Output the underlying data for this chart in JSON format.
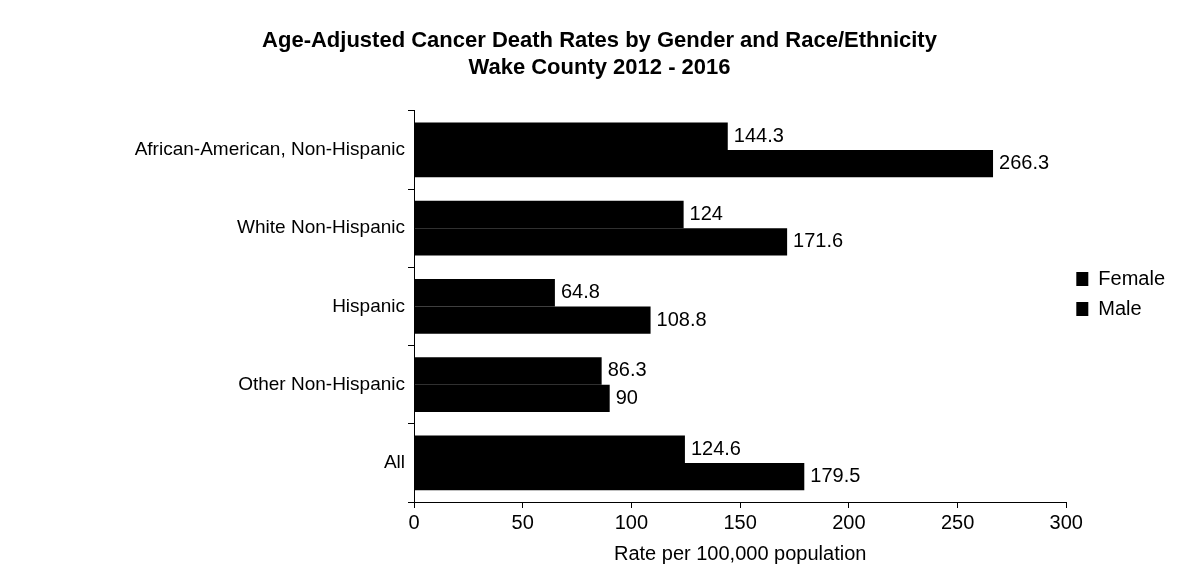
{
  "chart_data": {
    "type": "bar",
    "orientation": "horizontal",
    "title": "Age-Adjusted Cancer Death Rates by Gender and Race/Ethnicity",
    "subtitle": "Wake County 2012 - 2016",
    "xlabel": "Rate per 100,000 population",
    "categories": [
      "African-American, Non-Hispanic",
      "White Non-Hispanic",
      "Hispanic",
      "Other Non-Hispanic",
      "All"
    ],
    "series": [
      {
        "name": "Female",
        "color": "#000000",
        "values": [
          144.3,
          124,
          64.8,
          86.3,
          124.6
        ]
      },
      {
        "name": "Male",
        "color": "#000000",
        "values": [
          266.3,
          171.6,
          108.8,
          90,
          179.5
        ]
      }
    ],
    "xlim": [
      0,
      300
    ],
    "xticks": [
      0,
      50,
      100,
      150,
      200,
      250,
      300
    ],
    "data_labels": true,
    "legend": "right",
    "grid": false
  }
}
